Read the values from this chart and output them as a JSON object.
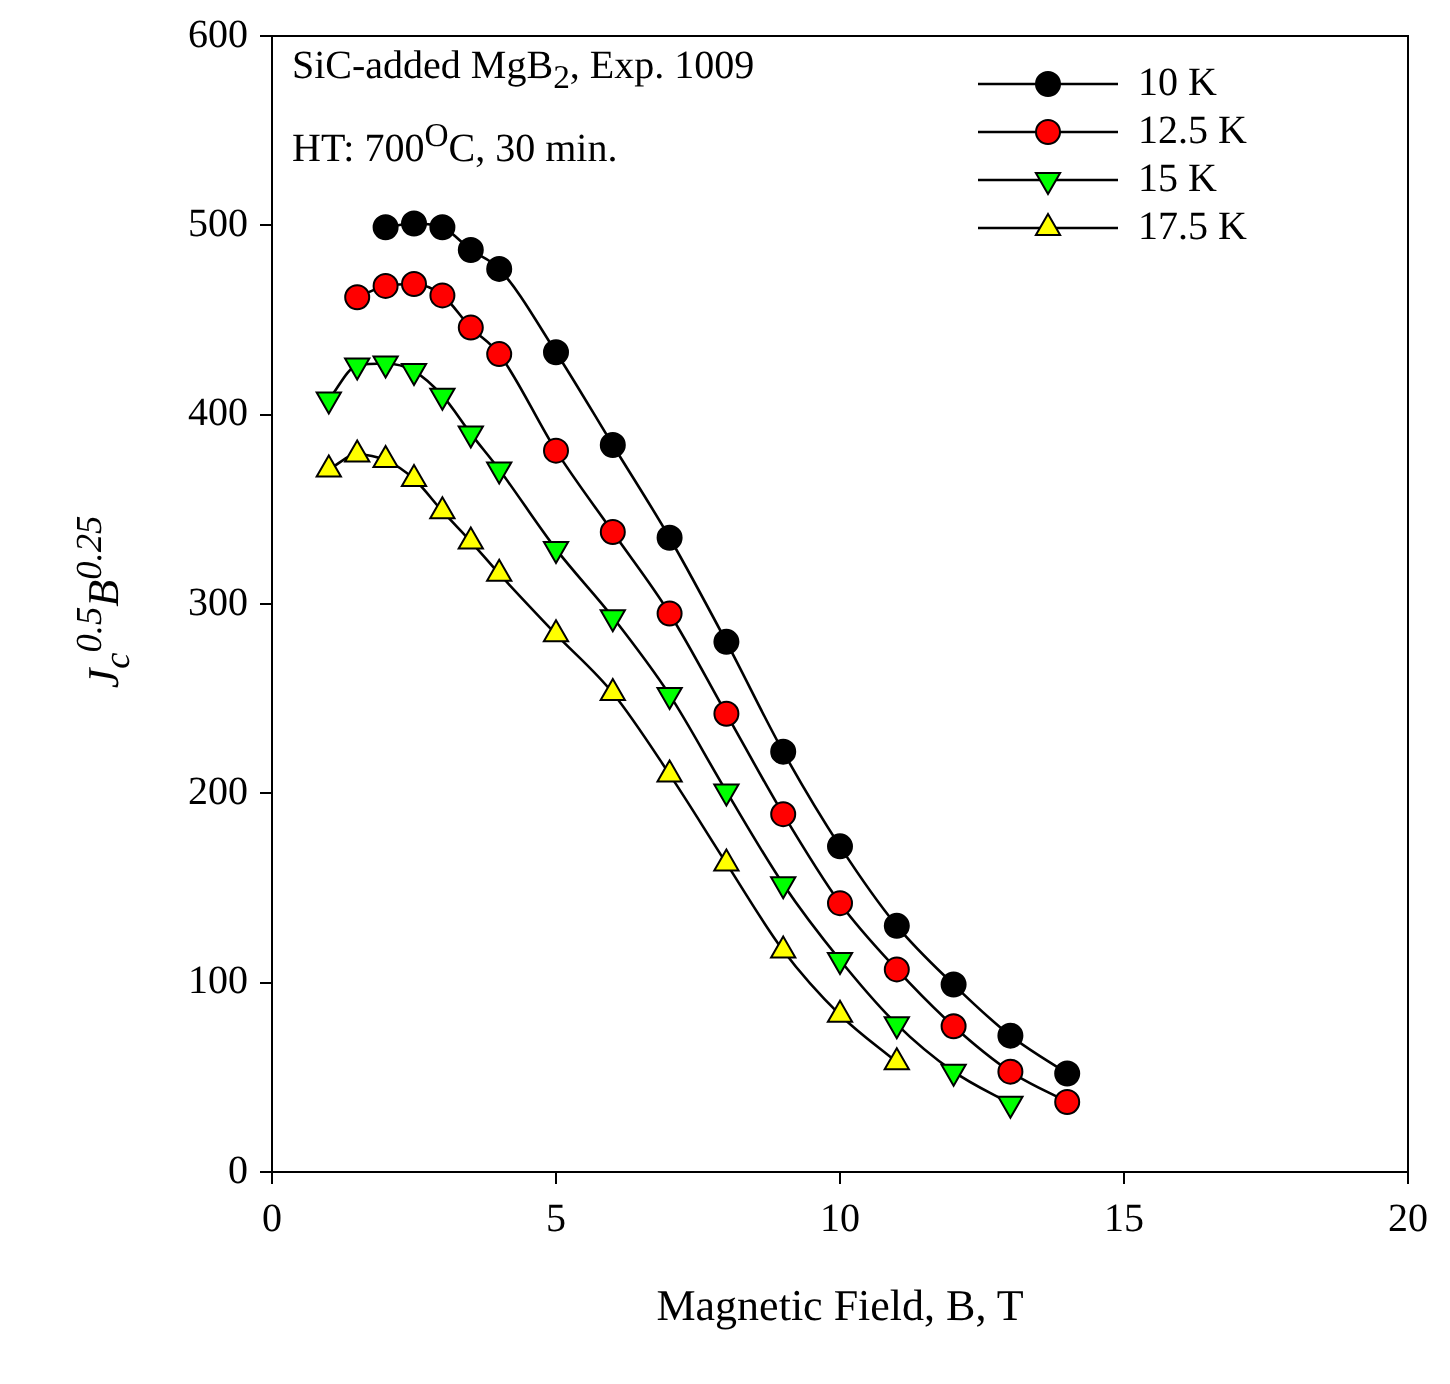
{
  "chart_data": {
    "type": "line",
    "xlabel": "Magnetic Field, B, T",
    "ylabel": "J$_{c}$$^{0.5}$B$^{0.25}$",
    "annotations": [
      "SiC-added MgB$_{2}$, Exp. 1009",
      "HT: 700$^{O}$C, 30 min."
    ],
    "xlim": [
      0,
      20
    ],
    "xticks": [
      0,
      5,
      10,
      15,
      20
    ],
    "ylim": [
      0,
      600
    ],
    "yticks": [
      0,
      100,
      200,
      300,
      400,
      500,
      600
    ],
    "grid": false,
    "legend": "top right",
    "line_style": "solid",
    "series": [
      {
        "name": "10 K",
        "color": "#000000",
        "marker": "circle",
        "x": [
          2,
          2.5,
          3,
          3.5,
          4,
          5,
          6,
          7,
          8,
          9,
          10,
          11,
          12,
          13,
          14
        ],
        "values": [
          499,
          501,
          499,
          487,
          477,
          433,
          384,
          335,
          280,
          222,
          172,
          130,
          99,
          72,
          52
        ]
      },
      {
        "name": "12.5 K",
        "color": "#ff0000",
        "marker": "circle",
        "x": [
          1.5,
          2,
          2.5,
          3,
          3.5,
          4,
          5,
          6,
          7,
          8,
          9,
          10,
          11,
          12,
          13,
          14
        ],
        "values": [
          462,
          468,
          469,
          463,
          446,
          432,
          381,
          338,
          295,
          242,
          189,
          142,
          107,
          77,
          53,
          37
        ]
      },
      {
        "name": "15 K",
        "color": "#00ff00",
        "marker": "triangle-down",
        "x": [
          1,
          1.5,
          2,
          2.5,
          3,
          3.5,
          4,
          5,
          6,
          7,
          8,
          9,
          10,
          11,
          12,
          13
        ],
        "values": [
          408,
          426,
          427,
          423,
          410,
          390,
          371,
          329,
          293,
          252,
          201,
          152,
          112,
          78,
          53,
          36
        ]
      },
      {
        "name": "17.5 K",
        "color": "#ffff00",
        "marker": "triangle",
        "x": [
          1,
          1.5,
          2,
          2.5,
          3,
          3.5,
          4,
          5,
          6,
          7,
          8,
          9,
          10,
          11
        ],
        "values": [
          371,
          379,
          376,
          366,
          349,
          333,
          316,
          284,
          253,
          210,
          163,
          117,
          83,
          58
        ]
      }
    ]
  }
}
